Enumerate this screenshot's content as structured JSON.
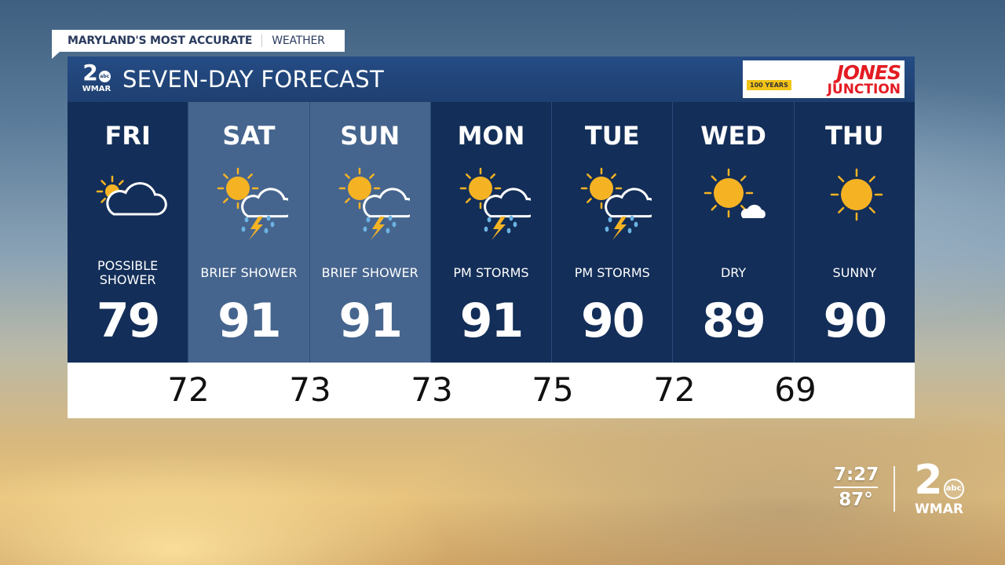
{
  "tagline": {
    "bold": "MARYLAND'S MOST ACCURATE",
    "normal": "WEATHER"
  },
  "header": {
    "title": "SEVEN-DAY FORECAST",
    "logo": {
      "number": "2",
      "network": "abc",
      "call": "WMAR"
    },
    "sponsor": {
      "line1": "JONES",
      "line2": "JUNCTION",
      "badge": "100 YEARS"
    }
  },
  "days": [
    {
      "day": "FRI",
      "icon": "partly-cloudy-icon",
      "condition": "POSSIBLE SHOWER",
      "high": "79",
      "highlight": false
    },
    {
      "day": "SAT",
      "icon": "sun-thunderstorm-icon",
      "condition": "BRIEF SHOWER",
      "high": "91",
      "highlight": true
    },
    {
      "day": "SUN",
      "icon": "sun-thunderstorm-icon",
      "condition": "BRIEF SHOWER",
      "high": "91",
      "highlight": true
    },
    {
      "day": "MON",
      "icon": "sun-thunderstorm-icon",
      "condition": "PM STORMS",
      "high": "91",
      "highlight": false
    },
    {
      "day": "TUE",
      "icon": "sun-thunderstorm-icon",
      "condition": "PM STORMS",
      "high": "90",
      "highlight": false
    },
    {
      "day": "WED",
      "icon": "mostly-sunny-icon",
      "condition": "DRY",
      "high": "89",
      "highlight": false
    },
    {
      "day": "THU",
      "icon": "sunny-icon",
      "condition": "SUNNY",
      "high": "90",
      "highlight": false
    }
  ],
  "lows": [
    "72",
    "73",
    "73",
    "75",
    "72",
    "69"
  ],
  "bug": {
    "time": "7:27",
    "temp": "87°",
    "logo": {
      "number": "2",
      "network": "abc",
      "call": "WMAR"
    }
  },
  "colors": {
    "header": "#1e3f70",
    "column": "#132e58",
    "highlight": "#46658e",
    "sun": "#f5b324",
    "rain": "#6cb4e4"
  }
}
